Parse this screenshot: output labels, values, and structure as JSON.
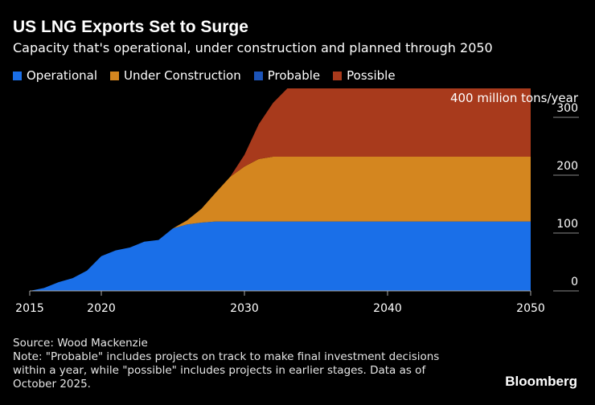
{
  "header": {
    "title": "US LNG Exports Set to Surge",
    "subtitle": "Capacity that's operational, under construction and planned through 2050"
  },
  "legend": [
    {
      "label": "Operational",
      "color": "#1a6fe8"
    },
    {
      "label": "Under Construction",
      "color": "#d4861f"
    },
    {
      "label": "Probable",
      "color": "#1c54b8"
    },
    {
      "label": "Possible",
      "color": "#a83a1c"
    }
  ],
  "footer": {
    "source": "Source: Wood Mackenzie",
    "note": "Note: \"Probable\" includes projects on track to make final investment decisions within a year, while \"possible\" includes projects in earlier stages. Data as of October 2025.",
    "brand": "Bloomberg"
  },
  "chart_data": {
    "type": "area",
    "stacked": true,
    "ylabel": "400 million tons/year",
    "ylim": [
      0,
      350
    ],
    "xlim": [
      2015,
      2050
    ],
    "yticks": [
      0,
      100,
      200,
      300
    ],
    "xticks": [
      2015,
      2020,
      2030,
      2040,
      2050
    ],
    "legend_position": "top-left",
    "grid": false,
    "x": [
      2015,
      2016,
      2017,
      2018,
      2019,
      2020,
      2021,
      2022,
      2023,
      2024,
      2025,
      2026,
      2027,
      2028,
      2029,
      2030,
      2031,
      2032,
      2033,
      2034,
      2035,
      2040,
      2045,
      2050
    ],
    "series": [
      {
        "name": "Operational",
        "color": "#1a6fe8",
        "values": [
          0,
          5,
          15,
          22,
          35,
          60,
          70,
          75,
          85,
          88,
          108,
          115,
          118,
          120,
          120,
          120,
          120,
          120,
          120,
          120,
          120,
          120,
          120,
          120
        ]
      },
      {
        "name": "Under Construction",
        "color": "#d4861f",
        "values": [
          0,
          0,
          0,
          0,
          0,
          0,
          0,
          0,
          0,
          0,
          0,
          7,
          24,
          50,
          77,
          95,
          108,
          112,
          112,
          112,
          112,
          112,
          112,
          112
        ]
      },
      {
        "name": "Probable",
        "color": "#1c54b8",
        "values": [
          0,
          0,
          0,
          0,
          0,
          0,
          0,
          0,
          0,
          0,
          0,
          0,
          0,
          0,
          0,
          0,
          0,
          0,
          0,
          0,
          0,
          0,
          0,
          0
        ]
      },
      {
        "name": "Possible",
        "color": "#a83a1c",
        "values": [
          0,
          0,
          0,
          0,
          0,
          0,
          0,
          0,
          0,
          0,
          0,
          0,
          0,
          0,
          0,
          20,
          60,
          93,
          118,
          118,
          118,
          118,
          118,
          118
        ]
      }
    ]
  }
}
